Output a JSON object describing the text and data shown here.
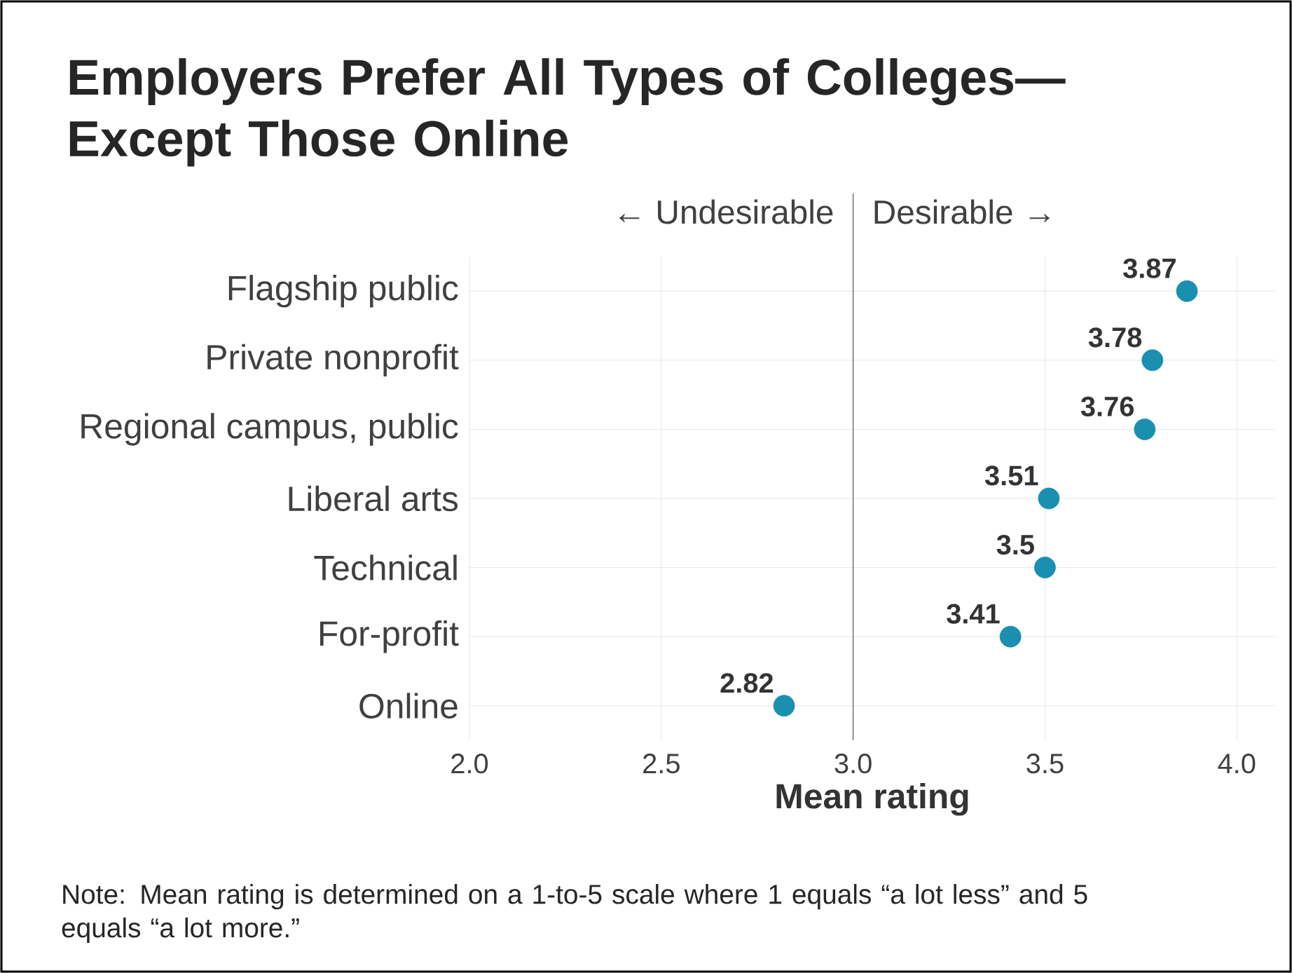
{
  "chart_data": {
    "type": "scatter",
    "title": "Employers Prefer All Types of Colleges—Except Those Online",
    "categories": [
      "Flagship public",
      "Private nonprofit",
      "Regional campus, public",
      "Liberal arts",
      "Technical",
      "For-profit",
      "Online"
    ],
    "values": [
      3.87,
      3.78,
      3.76,
      3.51,
      3.5,
      3.41,
      2.82
    ],
    "value_labels": [
      "3.87",
      "3.78",
      "3.76",
      "3.51",
      "3.5",
      "3.41",
      "2.82"
    ],
    "color": "#1a8fb0",
    "marker": "circle",
    "orientation": "horizontal",
    "xlim": [
      2.0,
      4.1
    ],
    "xticks": [
      {
        "value": 2.0,
        "label": "2.0"
      },
      {
        "value": 2.5,
        "label": "2.5"
      },
      {
        "value": 3.0,
        "label": "3.0"
      },
      {
        "value": 3.5,
        "label": "3.5"
      },
      {
        "value": 4.0,
        "label": "4.0"
      }
    ],
    "xlabel": "Mean rating",
    "ref_lines": [
      {
        "axis": "x",
        "value": 3.0,
        "color": "#555555"
      }
    ],
    "annotations": [
      "← Undesirable",
      "Desirable →",
      "Note: Mean rating is determined on a 1-to-5 scale where 1 equals “a lot less” and 5 equals “a lot more.”"
    ],
    "grid": true,
    "legend": false
  }
}
